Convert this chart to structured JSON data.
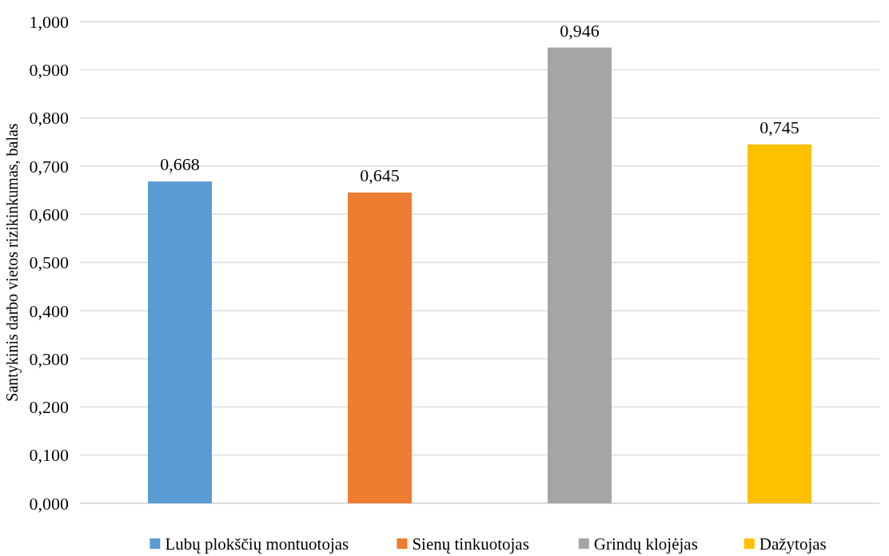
{
  "chart_data": {
    "type": "bar",
    "ylabel": "Santykinis darbo vietos rizikinkumas, balas",
    "categories": [
      null
    ],
    "series": [
      {
        "name": "Lubų plokščių montuotojas",
        "color": "#5b9bd5",
        "values": [
          0.668
        ],
        "value_labels": [
          "0,668"
        ]
      },
      {
        "name": "Sienų tinkuotojas",
        "color": "#ed7d31",
        "values": [
          0.645
        ],
        "value_labels": [
          "0,645"
        ]
      },
      {
        "name": "Grindų klojėjas",
        "color": "#a5a5a5",
        "values": [
          0.946
        ],
        "value_labels": [
          "0,946"
        ]
      },
      {
        "name": "Dažytojas",
        "color": "#ffc000",
        "values": [
          0.745
        ],
        "value_labels": [
          "0,745"
        ]
      }
    ],
    "ylim": [
      0,
      1
    ],
    "yticks": [
      {
        "value": 0,
        "label": "0,000"
      },
      {
        "value": 0.1,
        "label": "0,100"
      },
      {
        "value": 0.2,
        "label": "0,200"
      },
      {
        "value": 0.3,
        "label": "0,300"
      },
      {
        "value": 0.4,
        "label": "0,400"
      },
      {
        "value": 0.5,
        "label": "0,500"
      },
      {
        "value": 0.6,
        "label": "0,600"
      },
      {
        "value": 0.7,
        "label": "0,700"
      },
      {
        "value": 0.8,
        "label": "0,800"
      },
      {
        "value": 0.9,
        "label": "0,900"
      },
      {
        "value": 1,
        "label": "1,000"
      }
    ],
    "grid": "y",
    "legend": "bottom"
  }
}
